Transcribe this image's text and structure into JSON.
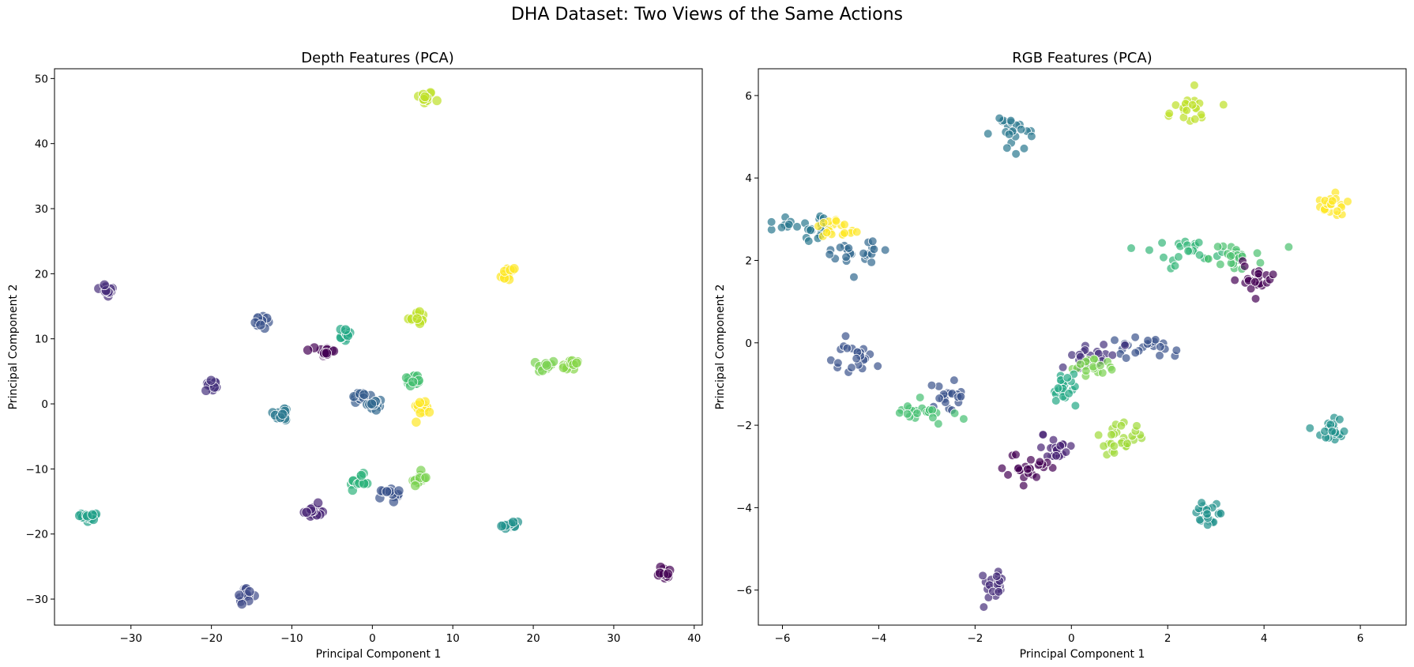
{
  "figure": {
    "title": "DHA Dataset: Two Views of the Same Actions"
  },
  "chart_data": [
    {
      "type": "scatter",
      "title": "Depth Features (PCA)",
      "xlabel": "Principal Component 1",
      "ylabel": "Principal Component 2",
      "xlim": [
        -39.5,
        41
      ],
      "ylim": [
        -34,
        51.5
      ],
      "xticks": [
        -30,
        -20,
        -10,
        0,
        10,
        20,
        30,
        40
      ],
      "yticks": [
        -30,
        -20,
        -10,
        0,
        10,
        20,
        30,
        40,
        50
      ],
      "xtick_labels": [
        "−30",
        "−20",
        "−10",
        "0",
        "10",
        "20",
        "30",
        "40"
      ],
      "ytick_labels": [
        "−30",
        "−20",
        "−10",
        "0",
        "10",
        "20",
        "30",
        "40",
        "50"
      ],
      "grid": false,
      "colormap": "viridis",
      "point_color_alpha": 0.7,
      "clusters": [
        {
          "x": 6.5,
          "y": 47.0,
          "color": "#bddf26",
          "n": 14
        },
        {
          "x": -33.0,
          "y": 17.5,
          "color": "#472d7b",
          "n": 14
        },
        {
          "x": 16.8,
          "y": 20.0,
          "color": "#fde725",
          "n": 14
        },
        {
          "x": -13.5,
          "y": 12.5,
          "color": "#3b528b",
          "n": 14
        },
        {
          "x": -3.5,
          "y": 10.7,
          "color": "#22a884",
          "n": 14
        },
        {
          "x": 5.5,
          "y": 13.3,
          "color": "#bddf26",
          "n": 14
        },
        {
          "x": -5.8,
          "y": 8.0,
          "color": "#440154",
          "n": 14
        },
        {
          "x": -20.0,
          "y": 2.8,
          "color": "#46327e",
          "n": 14
        },
        {
          "x": -1.5,
          "y": 1.2,
          "color": "#365c8d",
          "n": 14
        },
        {
          "x": 0.2,
          "y": -0.2,
          "color": "#31688e",
          "n": 14
        },
        {
          "x": -11.2,
          "y": -1.5,
          "color": "#2a788e",
          "n": 14
        },
        {
          "x": 5.0,
          "y": 3.5,
          "color": "#44bf70",
          "n": 14
        },
        {
          "x": 6.3,
          "y": -0.5,
          "color": "#fde725",
          "n": 14
        },
        {
          "x": 21.6,
          "y": 5.8,
          "color": "#7ad151",
          "n": 14
        },
        {
          "x": 24.6,
          "y": 5.8,
          "color": "#86d549",
          "n": 14
        },
        {
          "x": -1.6,
          "y": -12.0,
          "color": "#2fb47c",
          "n": 14
        },
        {
          "x": 5.7,
          "y": -11.5,
          "color": "#7ad151",
          "n": 14
        },
        {
          "x": 2.3,
          "y": -14.0,
          "color": "#3b528b",
          "n": 14
        },
        {
          "x": -7.5,
          "y": -16.5,
          "color": "#482576",
          "n": 14
        },
        {
          "x": 17.2,
          "y": -18.7,
          "color": "#21918c",
          "n": 14
        },
        {
          "x": -35.0,
          "y": -17.2,
          "color": "#1fa088",
          "n": 14
        },
        {
          "x": -15.8,
          "y": -29.5,
          "color": "#3e4a89",
          "n": 14
        },
        {
          "x": 36.3,
          "y": -25.9,
          "color": "#440154",
          "n": 14
        }
      ]
    },
    {
      "type": "scatter",
      "title": "RGB Features (PCA)",
      "xlabel": "Principal Component 1",
      "ylabel": "Principal Component 2",
      "xlim": [
        -6.5,
        6.95
      ],
      "ylim": [
        -6.85,
        6.65
      ],
      "xticks": [
        -6,
        -4,
        -2,
        0,
        2,
        4,
        6
      ],
      "yticks": [
        -6,
        -4,
        -2,
        0,
        2,
        4,
        6
      ],
      "xtick_labels": [
        "−6",
        "−4",
        "−2",
        "0",
        "2",
        "4",
        "6"
      ],
      "ytick_labels": [
        "−6",
        "−4",
        "−2",
        "0",
        "2",
        "4",
        "6"
      ],
      "grid": false,
      "colormap": "viridis",
      "point_color_alpha": 0.7,
      "clusters": [
        {
          "x": 2.5,
          "y": 5.65,
          "color": "#bddf26",
          "n": 22,
          "sx": 0.32,
          "sy": 0.17
        },
        {
          "x": -1.2,
          "y": 5.1,
          "color": "#2a788e",
          "n": 22,
          "sx": 0.22,
          "sy": 0.22
        },
        {
          "x": 5.35,
          "y": 3.4,
          "color": "#fde725",
          "n": 20,
          "sx": 0.22,
          "sy": 0.17
        },
        {
          "x": -5.6,
          "y": 2.8,
          "color": "#2a788e",
          "n": 24,
          "sx": 0.25,
          "sy": 0.16
        },
        {
          "x": -4.9,
          "y": 2.8,
          "color": "#fde725",
          "n": 20,
          "sx": 0.2,
          "sy": 0.14
        },
        {
          "x": -4.5,
          "y": 2.1,
          "color": "#31688e",
          "n": 24,
          "sx": 0.28,
          "sy": 0.17
        },
        {
          "x": 2.3,
          "y": 2.2,
          "color": "#35b779",
          "n": 24,
          "sx": 0.33,
          "sy": 0.16
        },
        {
          "x": 3.3,
          "y": 2.1,
          "color": "#4ac16d",
          "n": 24,
          "sx": 0.3,
          "sy": 0.16
        },
        {
          "x": 3.85,
          "y": 1.55,
          "color": "#440154",
          "n": 22,
          "sx": 0.22,
          "sy": 0.18
        },
        {
          "x": -4.5,
          "y": -0.4,
          "color": "#3b528b",
          "n": 22,
          "sx": 0.25,
          "sy": 0.18
        },
        {
          "x": 1.4,
          "y": -0.1,
          "color": "#3b528b",
          "n": 24,
          "sx": 0.33,
          "sy": 0.16
        },
        {
          "x": 0.5,
          "y": -0.35,
          "color": "#46327e",
          "n": 24,
          "sx": 0.3,
          "sy": 0.16
        },
        {
          "x": 0.4,
          "y": -0.65,
          "color": "#7ad151",
          "n": 18,
          "sx": 0.22,
          "sy": 0.15
        },
        {
          "x": -0.2,
          "y": -1.1,
          "color": "#22a884",
          "n": 22,
          "sx": 0.18,
          "sy": 0.2
        },
        {
          "x": -2.6,
          "y": -1.3,
          "color": "#3b528b",
          "n": 22,
          "sx": 0.22,
          "sy": 0.17
        },
        {
          "x": -3.1,
          "y": -1.7,
          "color": "#44bf70",
          "n": 24,
          "sx": 0.3,
          "sy": 0.12
        },
        {
          "x": 1.0,
          "y": -2.3,
          "color": "#a0da39",
          "n": 30,
          "sx": 0.26,
          "sy": 0.2
        },
        {
          "x": -0.4,
          "y": -2.55,
          "color": "#482475",
          "n": 22,
          "sx": 0.22,
          "sy": 0.17
        },
        {
          "x": -0.9,
          "y": -3.0,
          "color": "#440154",
          "n": 24,
          "sx": 0.22,
          "sy": 0.17
        },
        {
          "x": 5.4,
          "y": -2.15,
          "color": "#21918c",
          "n": 22,
          "sx": 0.2,
          "sy": 0.18
        },
        {
          "x": 2.8,
          "y": -4.1,
          "color": "#21918c",
          "n": 22,
          "sx": 0.18,
          "sy": 0.2
        },
        {
          "x": -1.6,
          "y": -5.85,
          "color": "#472d7b",
          "n": 22,
          "sx": 0.18,
          "sy": 0.2
        }
      ]
    }
  ]
}
